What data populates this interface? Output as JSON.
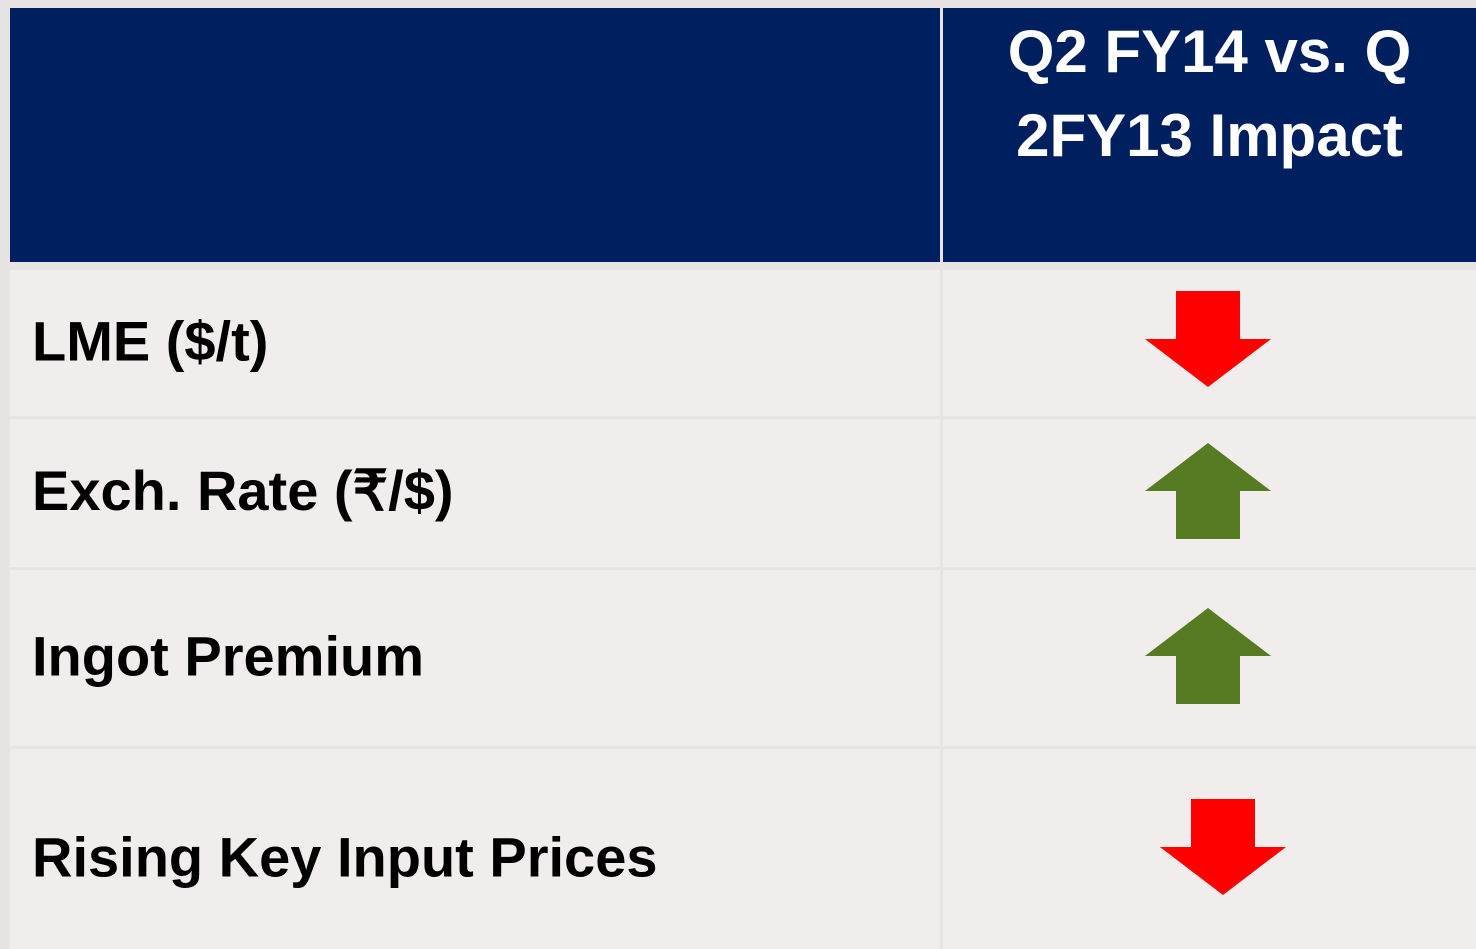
{
  "table": {
    "header": [
      "",
      "Q2 FY14 vs. Q 2FY13 Impact"
    ],
    "rows": [
      [
        "LME ($/t)",
        "down"
      ],
      [
        "Exch. Rate (₹/$)",
        "up"
      ],
      [
        "Ingot Premium",
        "up"
      ],
      [
        "Rising Key Input Prices",
        "down"
      ]
    ]
  }
}
